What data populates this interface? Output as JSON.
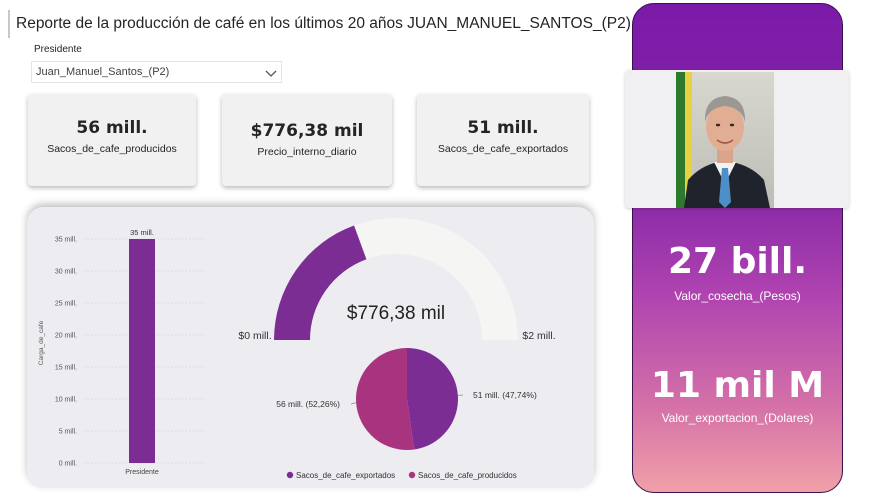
{
  "header": {
    "title": "Reporte de la producción de café en los últimos 20 años JUAN_MANUEL_SANTOS_(P2)"
  },
  "slicer": {
    "label": "Presidente",
    "value": "Juan_Manuel_Santos_(P2)"
  },
  "cards": [
    {
      "value": "56 mill.",
      "label": "Sacos_de_cafe_producidos"
    },
    {
      "value": "$776,38 mil",
      "label": "Precio_interno_diario"
    },
    {
      "value": "51 mill.",
      "label": "Sacos_de_cafe_exportados"
    }
  ],
  "side": {
    "photo_alt": "Juan Manuel Santos",
    "cosecha_value": "27 bill.",
    "cosecha_label": "Valor_cosecha_(Pesos)",
    "exportacion_value": "11 mil M",
    "exportacion_label": "Valor_exportacion_(Dolares)"
  },
  "colors": {
    "purple": "#7b2d94",
    "magenta": "#a8337f",
    "gauge_empty": "#f5f5f3",
    "accent": "#8b2bb0"
  },
  "chart_data": [
    {
      "type": "bar",
      "categories": [
        "Presidente"
      ],
      "values": [
        35
      ],
      "value_units": "mill.",
      "data_labels": [
        "35 mill."
      ],
      "ylabel": "Carga_de_cafe",
      "xlabel": "",
      "ylim": [
        0,
        35
      ],
      "yticks": [
        0,
        5,
        10,
        15,
        20,
        25,
        30,
        35
      ],
      "ytick_labels": [
        "0 mill.",
        "5 mill.",
        "10 mill.",
        "15 mill.",
        "20 mill.",
        "25 mill.",
        "30 mill.",
        "35 mill."
      ],
      "grid": true
    },
    {
      "type": "gauge",
      "value": 776.38,
      "value_label": "$776,38 mil",
      "min_label": "$0 mill.",
      "max_label": "$2 mill.",
      "min": 0,
      "max": 2000,
      "value_units": "mil"
    },
    {
      "type": "pie",
      "slices": [
        {
          "name": "Sacos_de_cafe_exportados",
          "value": 47.74,
          "label": "51 mill. (47,74%)",
          "color": "#7b2d94"
        },
        {
          "name": "Sacos_de_cafe_producidos",
          "value": 52.26,
          "label": "56 mill. (52,26%)",
          "color": "#a8337f"
        }
      ],
      "legend": [
        "Sacos_de_cafe_exportados",
        "Sacos_de_cafe_producidos"
      ],
      "legend_position": "bottom"
    }
  ]
}
